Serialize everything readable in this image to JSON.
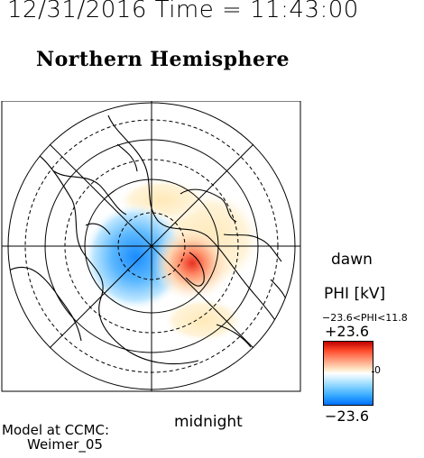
{
  "header": {
    "datetime": "12/31/2016 Time = 11:43:00"
  },
  "map": {
    "title": "Northern Hemisphere",
    "label_dawn": "dawn",
    "label_midnight": "midnight",
    "projection": "polar stereographic, north pole centered",
    "colors": {
      "positive": "#e83020",
      "negative": "#1a8cff",
      "neutral": "#ffffff",
      "coast": "#000000"
    }
  },
  "colorbar": {
    "title": "PHI [kV]",
    "range_text": "−23.6<PHI<11.8",
    "max_label": "+23.6",
    "zero_label": "0",
    "min_label": "−23.6",
    "max": 23.6,
    "min": -23.6
  },
  "credit": {
    "line1": "Model at CCMC:",
    "line2": "Weimer_05"
  }
}
